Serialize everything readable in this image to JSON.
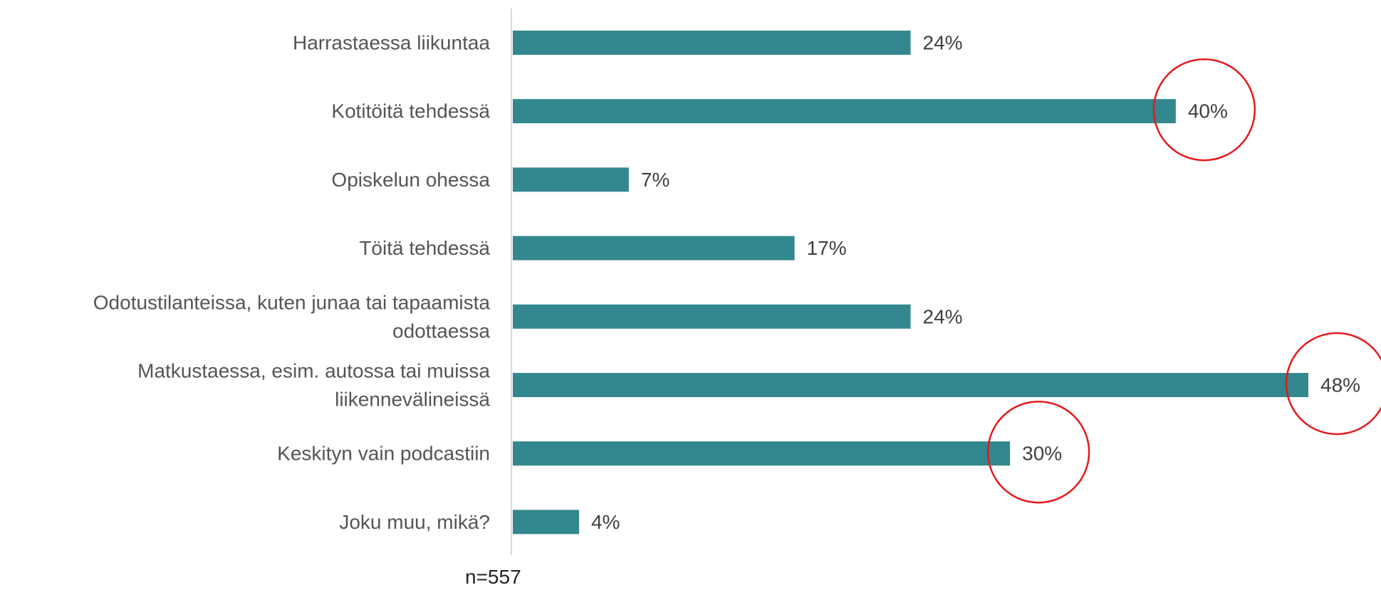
{
  "chart_data": {
    "type": "bar",
    "orientation": "horizontal",
    "categories": [
      [
        "Harrastaessa liikuntaa"
      ],
      [
        "Kotitöitä tehdessä"
      ],
      [
        "Opiskelun ohessa"
      ],
      [
        "Töitä tehdessä"
      ],
      [
        "Odotustilanteissa, kuten junaa tai tapaamista",
        "odottaessa"
      ],
      [
        "Matkustaessa, esim. autossa tai muissa",
        "liikennevälineissä"
      ],
      [
        "Keskityn vain podcastiin"
      ],
      [
        "Joku muu, mikä?"
      ]
    ],
    "values": [
      24,
      40,
      7,
      17,
      24,
      48,
      30,
      4
    ],
    "value_labels": [
      "24%",
      "40%",
      "7%",
      "17%",
      "24%",
      "48%",
      "30%",
      "4%"
    ],
    "highlighted": [
      "40%",
      "48%",
      "30%"
    ],
    "xlim": [
      0,
      48
    ],
    "grid": false,
    "legend": "none",
    "bar_color": "#33878F",
    "highlight_color": "#E3191B"
  },
  "note": "n=557"
}
